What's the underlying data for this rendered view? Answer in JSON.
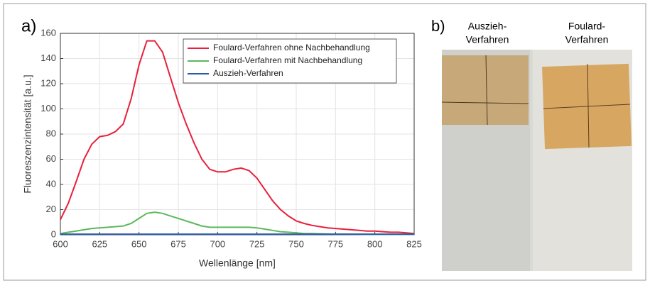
{
  "chart_data": {
    "type": "line",
    "panel_label": "a)",
    "x_label": "Wellenlänge [nm]",
    "y_label": "Fluoreszenzintensität [a.u.]",
    "x": [
      600,
      605,
      610,
      615,
      620,
      625,
      630,
      635,
      640,
      645,
      650,
      655,
      660,
      665,
      670,
      675,
      680,
      685,
      690,
      695,
      700,
      705,
      710,
      715,
      720,
      725,
      730,
      735,
      740,
      745,
      750,
      755,
      760,
      765,
      770,
      775,
      780,
      785,
      790,
      795,
      800,
      805,
      810,
      815,
      820,
      825
    ],
    "series": [
      {
        "name": "Foulard-Verfahren ohne Nachbehandlung",
        "color": "#e8203a",
        "values": [
          12,
          25,
          42,
          60,
          72,
          78,
          79,
          82,
          88,
          108,
          135,
          154,
          154,
          145,
          125,
          105,
          88,
          73,
          60,
          52,
          50,
          50,
          52,
          53,
          51,
          45,
          36,
          27,
          20,
          15,
          11,
          9,
          7.5,
          6.5,
          5.5,
          5,
          4.5,
          4,
          3.5,
          3,
          3,
          2.5,
          2,
          2,
          1.5,
          1
        ]
      },
      {
        "name": "Foulard-Verfahren mit Nachbehandlung",
        "color": "#5cb85c",
        "values": [
          1,
          2,
          3,
          4,
          5,
          5.5,
          6,
          6.5,
          7,
          9,
          13,
          17,
          18,
          17,
          15,
          13,
          11,
          9,
          7,
          6,
          6,
          6,
          6,
          6,
          6,
          5.5,
          4.5,
          3.5,
          2.5,
          2,
          1.5,
          1,
          1,
          0.8,
          0.6,
          0.5,
          0.5,
          0.4,
          0.4,
          0.3,
          0.3,
          0.3,
          0.3,
          0.3,
          0.3,
          0.3
        ]
      },
      {
        "name": "Auszieh-Verfahren",
        "color": "#2a5caa",
        "values": [
          0.5,
          0.5,
          0.5,
          0.5,
          0.5,
          0.5,
          0.5,
          0.5,
          0.5,
          0.5,
          0.5,
          0.5,
          0.5,
          0.5,
          0.5,
          0.5,
          0.5,
          0.5,
          0.5,
          0.5,
          0.5,
          0.5,
          0.5,
          0.5,
          0.5,
          0.5,
          0.5,
          0.5,
          0.5,
          0.5,
          0.5,
          0.5,
          0.5,
          0.5,
          0.5,
          0.5,
          0.5,
          0.5,
          0.5,
          0.5,
          0.5,
          0.5,
          0.5,
          0.5,
          0.5,
          0.5
        ]
      }
    ],
    "xlim": [
      600,
      825
    ],
    "xticks": [
      600,
      625,
      650,
      675,
      700,
      725,
      750,
      775,
      800,
      825
    ],
    "ylim": [
      0,
      160
    ],
    "yticks": [
      0,
      20,
      40,
      60,
      80,
      100,
      120,
      140,
      160
    ],
    "grid": true,
    "legend": "upper right"
  },
  "photo": {
    "label": "b)",
    "captions": [
      [
        "Auszieh-",
        "Verfahren"
      ],
      [
        "Foulard-",
        "Verfahren"
      ]
    ]
  }
}
